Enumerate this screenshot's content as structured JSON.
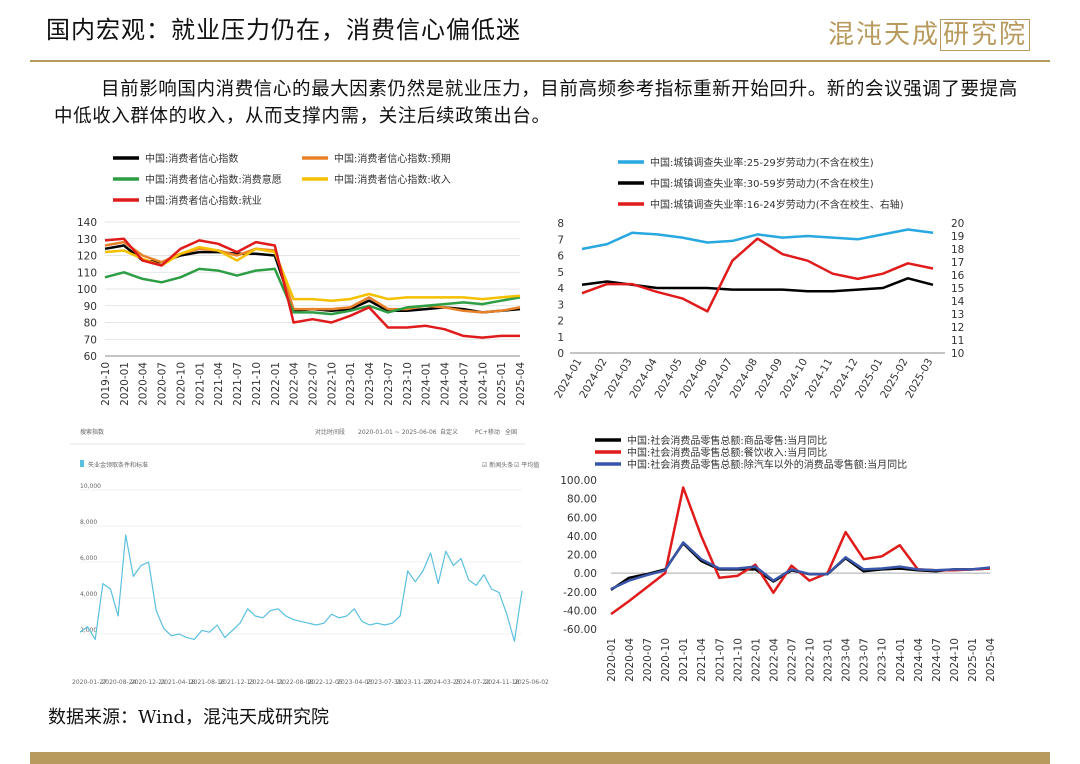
{
  "title": "国内宏观：就业压力仍在，消费信心偏低迷",
  "logo": {
    "part1": "混沌天成",
    "part2": "研究院"
  },
  "paragraph": "目前影响国内消费信心的最大因素仍然是就业压力，目前高频参考指标重新开始回升。新的会议强调了要提高中低收入群体的收入，从而支撑内需，关注后续政策出台。",
  "source": "数据来源：Wind，混沌天成研究院",
  "chart_data": [
    {
      "type": "line",
      "x": [
        "2019-10",
        "2020-01",
        "2020-04",
        "2020-07",
        "2020-10",
        "2021-01",
        "2021-04",
        "2021-07",
        "2021-10",
        "2022-01",
        "2022-04",
        "2022-07",
        "2022-10",
        "2023-01",
        "2023-04",
        "2023-07",
        "2023-10",
        "2024-01",
        "2024-04",
        "2024-07",
        "2024-10",
        "2025-01",
        "2025-04"
      ],
      "ylim": [
        60,
        140
      ],
      "yticks": [
        60,
        70,
        80,
        90,
        100,
        110,
        120,
        130,
        140
      ],
      "series": [
        {
          "name": "中国:消费者信心指数",
          "color": "#000000",
          "values": [
            124,
            126,
            117,
            116,
            120,
            122,
            122,
            121,
            121,
            120,
            87,
            88,
            87,
            88,
            93,
            87,
            87,
            88,
            89,
            88,
            86,
            87,
            88
          ]
        },
        {
          "name": "中国:消费者信心指数:预期",
          "color": "#e8822a",
          "values": [
            126,
            128,
            120,
            116,
            121,
            124,
            123,
            120,
            124,
            123,
            88,
            88,
            88,
            89,
            95,
            88,
            88,
            90,
            89,
            87,
            86,
            87,
            89
          ]
        },
        {
          "name": "中国:消费者信心指数:消费意愿",
          "color": "#2e9e44",
          "values": [
            107,
            110,
            106,
            104,
            107,
            112,
            111,
            108,
            111,
            112,
            86,
            86,
            85,
            87,
            90,
            86,
            89,
            90,
            91,
            92,
            91,
            93,
            95
          ]
        },
        {
          "name": "中国:消费者信心指数:收入",
          "color": "#f4c000",
          "values": [
            122,
            123,
            118,
            114,
            121,
            125,
            123,
            117,
            124,
            122,
            94,
            94,
            93,
            94,
            97,
            94,
            95,
            95,
            95,
            95,
            94,
            95,
            96
          ]
        },
        {
          "name": "中国:消费者信心指数:就业",
          "color": "#e01b1b",
          "values": [
            129,
            130,
            117,
            114,
            124,
            129,
            127,
            122,
            128,
            126,
            80,
            82,
            80,
            84,
            89,
            77,
            77,
            78,
            76,
            72,
            71,
            72,
            72
          ]
        }
      ]
    },
    {
      "type": "line",
      "x": [
        "2024-01",
        "2024-02",
        "2024-03",
        "2024-04",
        "2024-05",
        "2024-06",
        "2024-07",
        "2024-08",
        "2024-09",
        "2024-10",
        "2024-11",
        "2024-12",
        "2025-01",
        "2025-02",
        "2025-03"
      ],
      "ylim": [
        0,
        8
      ],
      "y2lim": [
        10,
        20
      ],
      "yticks": [
        0,
        1,
        2,
        3,
        4,
        5,
        6,
        7,
        8
      ],
      "y2ticks": [
        10,
        11,
        12,
        13,
        14,
        15,
        16,
        17,
        18,
        19,
        20
      ],
      "series": [
        {
          "name": "中国:城镇调查失业率:25-29岁劳动力(不含在校生)",
          "color": "#27a8e0",
          "axis": "left",
          "values": [
            6.4,
            6.7,
            7.4,
            7.3,
            7.1,
            6.8,
            6.9,
            7.3,
            7.1,
            7.2,
            7.1,
            7.0,
            7.3,
            7.6,
            7.4
          ]
        },
        {
          "name": "中国:城镇调查失业率:30-59岁劳动力(不含在校生)",
          "color": "#000000",
          "axis": "left",
          "values": [
            4.2,
            4.4,
            4.2,
            4.0,
            4.0,
            4.0,
            3.9,
            3.9,
            3.9,
            3.8,
            3.8,
            3.9,
            4.0,
            4.6,
            4.2
          ]
        },
        {
          "name": "中国:城镇调查失业率:16-24岁劳动力(不含在校生、右轴)",
          "color": "#e01b1b",
          "axis": "right",
          "values": [
            14.6,
            15.3,
            15.3,
            14.7,
            14.2,
            13.2,
            17.1,
            18.8,
            17.6,
            17.1,
            16.1,
            15.7,
            16.1,
            16.9,
            16.5
          ]
        }
      ]
    },
    {
      "type": "line",
      "title": "搜索指数",
      "date_range": "2020-01-01 ~ 2025-06-06",
      "toolbar": [
        "对比时间段",
        "自定义",
        "PC+移动",
        "全国"
      ],
      "legend": "失业金领取条件和标准",
      "checkboxes": [
        "新闻头条",
        "平均值"
      ],
      "yticks": [
        "2,000",
        "4,000",
        "6,000",
        "8,000",
        "10,000"
      ],
      "xticks": [
        "2020-01-27",
        "2020-08-24",
        "2020-12-21",
        "2021-04-18",
        "2021-08-16",
        "2021-12-13",
        "2022-04-11",
        "2022-08-08",
        "2022-12-05",
        "2023-04-03",
        "2023-07-31",
        "2023-11-27",
        "2024-03-25",
        "2024-07-22",
        "2024-11-18",
        "2025-06-02"
      ],
      "values": [
        2100,
        2400,
        1700,
        4800,
        4500,
        3000,
        7500,
        5200,
        5800,
        6000,
        3300,
        2300,
        1900,
        2000,
        1800,
        1700,
        2200,
        2100,
        2500,
        1800,
        2200,
        2600,
        3400,
        3000,
        2900,
        3300,
        3400,
        3000,
        2800,
        2700,
        2600,
        2500,
        2600,
        3100,
        2900,
        3000,
        3400,
        2700,
        2500,
        2600,
        2500,
        2600,
        3000,
        5500,
        4900,
        5500,
        6500,
        4800,
        6600,
        5800,
        6200,
        5000,
        4700,
        5300,
        4500,
        4300,
        3100,
        1600,
        4400
      ]
    },
    {
      "type": "line",
      "x": [
        "2020-01",
        "2020-04",
        "2020-07",
        "2020-10",
        "2021-01",
        "2021-04",
        "2021-07",
        "2021-10",
        "2022-01",
        "2022-04",
        "2022-07",
        "2022-10",
        "2023-01",
        "2023-04",
        "2023-07",
        "2023-10",
        "2024-01",
        "2024-04",
        "2024-07",
        "2024-10",
        "2025-01",
        "2025-04"
      ],
      "ylim": [
        -60,
        100
      ],
      "yticks": [
        "-60.00",
        "-40.00",
        "-20.00",
        "0.00",
        "20.00",
        "40.00",
        "60.00",
        "80.00",
        "100.00"
      ],
      "series": [
        {
          "name": "中国:社会消费品零售总额:商品零售:当月同比",
          "color": "#000000",
          "values": [
            -18,
            -5,
            -1,
            4,
            32,
            13,
            4,
            4,
            4,
            -9,
            3,
            -1,
            -1,
            16,
            2,
            4,
            5,
            3,
            2,
            4,
            4,
            5
          ]
        },
        {
          "name": "中国:社会消费品零售总额:餐饮收入:当月同比",
          "color": "#e01b1b",
          "values": [
            -44,
            -30,
            -15,
            0,
            92,
            40,
            -5,
            -3,
            9,
            -21,
            8,
            -8,
            0,
            44,
            15,
            18,
            30,
            4,
            3,
            3,
            4,
            5
          ]
        },
        {
          "name": "中国:社会消费品零售总额:除汽车以外的消费品零售额:当月同比",
          "color": "#3a56a8",
          "values": [
            -17,
            -8,
            -2,
            3,
            33,
            15,
            5,
            5,
            7,
            -8,
            4,
            -1,
            -1,
            17,
            4,
            5,
            7,
            4,
            3,
            4,
            4,
            6
          ]
        }
      ]
    }
  ]
}
